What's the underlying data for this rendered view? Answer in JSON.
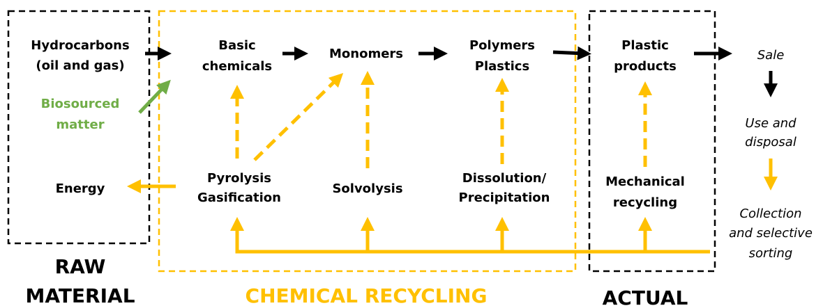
{
  "nodes": [
    {
      "lines": [
        "Hydrocarbons",
        "(oil and gas)"
      ]
    },
    {
      "lines": [
        "Biosourced",
        "matter"
      ]
    },
    {
      "lines": [
        "Energy"
      ]
    },
    {
      "lines": [
        "Basic",
        "chemicals"
      ]
    },
    {
      "lines": [
        "Monomers"
      ]
    },
    {
      "lines": [
        "Polymers",
        "Plastics"
      ]
    },
    {
      "lines": [
        "Plastic",
        "products"
      ]
    },
    {
      "lines": [
        "Sale"
      ]
    },
    {
      "lines": [
        "Use and",
        "disposal"
      ]
    },
    {
      "lines": [
        "Collection",
        "and selective",
        "sorting"
      ]
    },
    {
      "lines": [
        "Pyrolysis",
        "Gasification"
      ]
    },
    {
      "lines": [
        "Solvolysis"
      ]
    },
    {
      "lines": [
        "Dissolution/",
        "Precipitation"
      ]
    },
    {
      "lines": [
        "Mechanical",
        "recycling"
      ]
    }
  ],
  "sections": [
    {
      "lines": [
        "RAW",
        "MATERIAL"
      ]
    },
    {
      "lines": [
        "CHEMICAL RECYCLING"
      ]
    },
    {
      "lines": [
        "ACTUAL"
      ]
    }
  ]
}
